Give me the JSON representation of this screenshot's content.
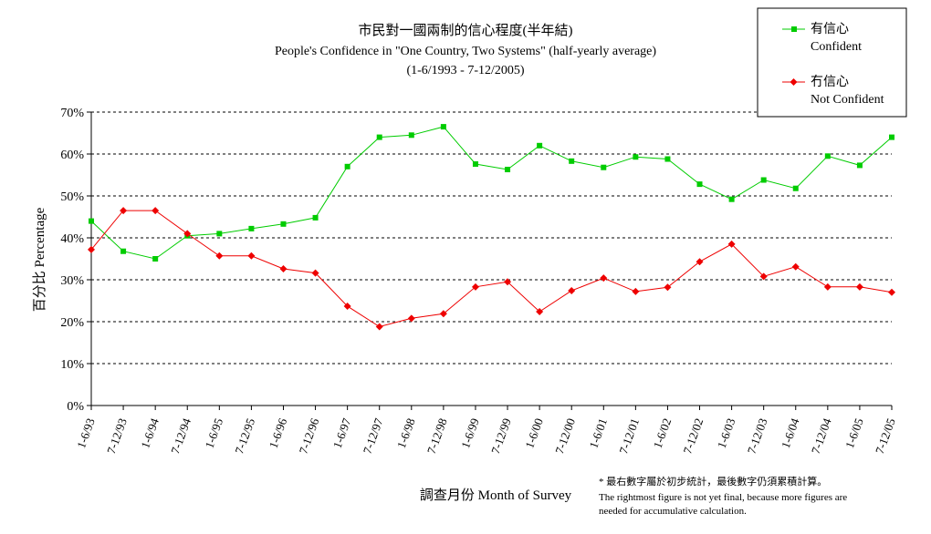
{
  "chart_data": {
    "type": "line",
    "title": "市民對一國兩制的信心程度(半年結)",
    "subtitle": "People's Confidence in \"One Country, Two Systems\"  (half-yearly average)",
    "period": "(1-6/1993 - 7-12/2005)",
    "xlabel": "調查月份 Month of Survey",
    "ylabel": "百分比 Percentage",
    "ylim": [
      0,
      70
    ],
    "yticks": [
      "0%",
      "10%",
      "20%",
      "30%",
      "40%",
      "50%",
      "60%",
      "70%"
    ],
    "grid": true,
    "legend_position": "top-right",
    "categories": [
      "1-6/93",
      "7-12/93",
      "1-6/94",
      "7-12/94",
      "1-6/95",
      "7-12/95",
      "1-6/96",
      "7-12/96",
      "1-6/97",
      "7-12/97",
      "1-6/98",
      "7-12/98",
      "1-6/99",
      "7-12/99",
      "1-6/00",
      "7-12/00",
      "1-6/01",
      "7-12/01",
      "1-6/02",
      "7-12/02",
      "1-6/03",
      "7-12/03",
      "1-6/04",
      "7-12/04",
      "1-6/05",
      "7-12/05"
    ],
    "series": [
      {
        "name": "有信心",
        "name_en": "Confident",
        "color": "#00cc00",
        "marker": "square",
        "values": [
          44.0,
          36.8,
          35.0,
          40.5,
          41.0,
          42.2,
          43.3,
          44.8,
          57.0,
          64.0,
          64.5,
          66.5,
          57.6,
          56.3,
          62.0,
          58.3,
          56.8,
          59.3,
          58.8,
          52.8,
          49.2,
          53.8,
          51.8,
          59.5,
          57.3,
          64.0
        ]
      },
      {
        "name": "冇信心",
        "name_en": "Not Confident",
        "color": "#ee0000",
        "marker": "diamond",
        "values": [
          37.2,
          46.5,
          46.5,
          41.0,
          35.7,
          35.7,
          32.6,
          31.6,
          23.7,
          18.8,
          20.8,
          21.9,
          28.3,
          29.5,
          22.4,
          27.4,
          30.4,
          27.2,
          28.2,
          34.3,
          38.5,
          30.8,
          33.1,
          28.3,
          28.3,
          27.0
        ]
      }
    ],
    "footnote": [
      "* 最右數字屬於初步統計，最後數字仍須累積計算。",
      "The rightmost figure is not yet final, because more figures are",
      "needed for accumulative calculation."
    ]
  }
}
